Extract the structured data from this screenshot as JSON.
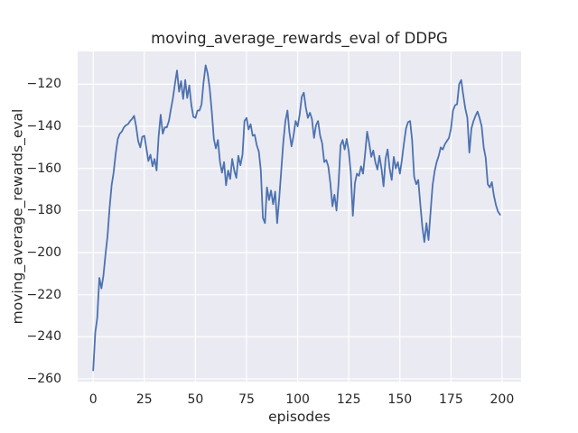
{
  "style": {
    "figure_background": "#ffffff",
    "axes_background": "#eaeaf2",
    "grid_color": "#ffffff",
    "text_color": "#262626",
    "line_color": "#4c72b0"
  },
  "chart_data": {
    "type": "line",
    "title": "moving_average_rewards_eval of DDPG",
    "xlabel": "episodes",
    "ylabel": "moving_average_rewards_eval",
    "grid": true,
    "legend": false,
    "x_ticks": [
      0,
      25,
      50,
      75,
      100,
      125,
      150,
      175,
      200
    ],
    "y_ticks": [
      -120,
      -140,
      -160,
      -180,
      -200,
      -220,
      -240,
      -260
    ],
    "xlim": [
      -7.6,
      209.3
    ],
    "ylim": [
      -261.3,
      -104.4
    ],
    "x_start": 0,
    "x_step": 1,
    "series": [
      {
        "name": "moving_average_rewards_eval",
        "color": "#4c72b0",
        "values": [
          -256,
          -238,
          -231,
          -212,
          -217,
          -211,
          -201,
          -192,
          -179,
          -168,
          -162,
          -153,
          -146,
          -143.5,
          -142.5,
          -140.5,
          -139.5,
          -139,
          -137.5,
          -136.5,
          -135,
          -140,
          -147,
          -150,
          -145,
          -144.5,
          -150.5,
          -156.5,
          -153.5,
          -159,
          -155.5,
          -161,
          -145,
          -134.5,
          -143.5,
          -140.5,
          -140.5,
          -137.5,
          -132,
          -126.5,
          -119.5,
          -113.5,
          -123.5,
          -118.5,
          -127,
          -118,
          -126.5,
          -120.5,
          -130,
          -135.5,
          -136,
          -132.5,
          -132.5,
          -129.5,
          -119,
          -111,
          -115,
          -122,
          -133,
          -146,
          -150.5,
          -146.5,
          -157,
          -162,
          -157,
          -168,
          -161,
          -165,
          -155.5,
          -161,
          -164.5,
          -154,
          -158.5,
          -153.5,
          -137.5,
          -136,
          -141.5,
          -139,
          -144.5,
          -144,
          -149,
          -152,
          -161,
          -183.5,
          -186,
          -169,
          -175,
          -170.5,
          -177,
          -171,
          -186,
          -174,
          -160.5,
          -147.5,
          -137.5,
          -132.5,
          -143,
          -149.5,
          -144.5,
          -137.5,
          -140,
          -134.5,
          -126,
          -124,
          -131,
          -136,
          -133.5,
          -136.5,
          -145.5,
          -139.5,
          -137.5,
          -144.5,
          -148,
          -157,
          -156,
          -159,
          -167,
          -178,
          -172.5,
          -180,
          -167,
          -149,
          -146.5,
          -151,
          -146,
          -152,
          -162,
          -182.5,
          -167,
          -162.5,
          -163.5,
          -159,
          -162.5,
          -153,
          -142.5,
          -148,
          -154.5,
          -151.5,
          -157,
          -160.5,
          -154,
          -160,
          -168.5,
          -155.5,
          -151,
          -160,
          -165.5,
          -154.5,
          -160,
          -157,
          -162.5,
          -156,
          -148,
          -141,
          -138,
          -137.5,
          -146.5,
          -164,
          -167.5,
          -165.5,
          -177,
          -188,
          -195,
          -186,
          -194,
          -181,
          -168,
          -161.5,
          -157,
          -154,
          -150,
          -151,
          -148.5,
          -147,
          -145.5,
          -141,
          -132.5,
          -130,
          -129.5,
          -120,
          -118,
          -125,
          -131.5,
          -136,
          -152.5,
          -141,
          -137.5,
          -135,
          -133,
          -136,
          -140,
          -150,
          -155,
          -167.5,
          -169,
          -166.5,
          -173,
          -177.5,
          -180.5,
          -182
        ]
      }
    ]
  }
}
